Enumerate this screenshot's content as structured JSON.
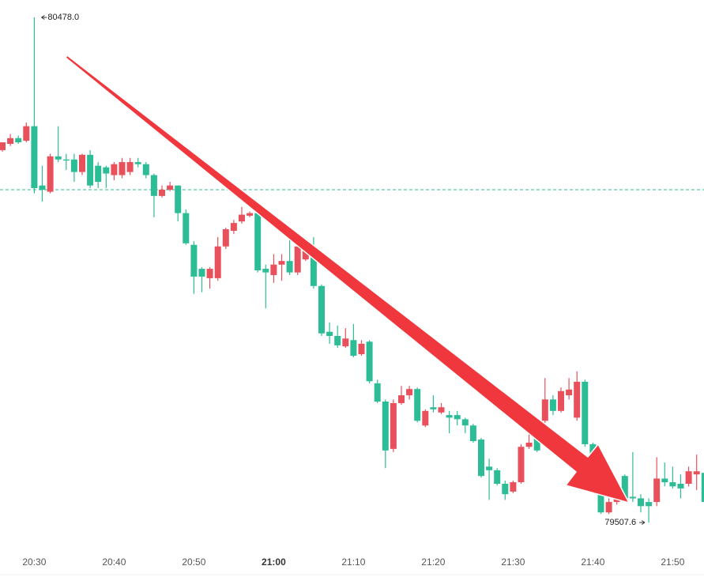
{
  "chart_data": {
    "type": "candlestick",
    "up_color": "#e8505b",
    "down_color": "#2dbd96",
    "price_line": 80147,
    "price_line_color": "#2dbd96",
    "high_label": "80478.0",
    "low_label": "79507.6",
    "categories": [
      null,
      null,
      null,
      null,
      "20:30",
      null,
      null,
      null,
      null,
      null,
      null,
      null,
      null,
      null,
      "20:40",
      null,
      null,
      null,
      null,
      null,
      null,
      null,
      null,
      null,
      "20:50",
      null,
      null,
      null,
      null,
      null,
      null,
      null,
      null,
      null,
      "21:00",
      null,
      null,
      null,
      null,
      null,
      null,
      null,
      null,
      null,
      "21:10",
      null,
      null,
      null,
      null,
      null,
      null,
      null,
      null,
      null,
      "21:20",
      null,
      null,
      null,
      null,
      null,
      null,
      null,
      null,
      null,
      "21:30",
      null,
      null,
      null,
      null,
      null,
      null,
      null,
      null,
      null,
      "21:40",
      null,
      null,
      null,
      null,
      null,
      null,
      null,
      null,
      null,
      "21:50",
      null,
      null,
      null,
      null
    ],
    "open": [
      80223,
      80235,
      80246,
      80241,
      80269,
      80155,
      80143,
      80211,
      80205,
      80205,
      80181,
      80214,
      80193,
      80190,
      80175,
      80175,
      80181,
      80200,
      80196,
      80175,
      80135,
      80147,
      80155,
      80102,
      80041,
      79995,
      79977,
      79977,
      80038,
      80068,
      80086,
      80097,
      80102,
      79995,
      79983,
      80003,
      80010,
      79988,
      80013,
      80033,
      79962,
      79874,
      79866,
      79846,
      79858,
      79831,
      79855,
      79775,
      79740,
      79649,
      79737,
      79752,
      79764,
      79694,
      79729,
      79719,
      79714,
      79714,
      79706,
      79694,
      79667,
      79615,
      79608,
      79582,
      79567,
      79585,
      79653,
      79676,
      79703,
      79744,
      79722,
      79752,
      79709,
      79778,
      79658,
      79615,
      79527,
      79547,
      79597,
      79557,
      79554,
      79547,
      79547,
      79592,
      79585,
      79582,
      79582,
      79600,
      79603
    ],
    "high": [
      80238,
      80254,
      80251,
      80276,
      80478.0,
      80193,
      80216,
      80269,
      80216,
      80216,
      80216,
      80223,
      80200,
      80193,
      80200,
      80208,
      80208,
      80208,
      80200,
      80178,
      80155,
      80162,
      80155,
      80109,
      80048,
      79998,
      79998,
      80056,
      80074,
      80089,
      80114,
      80105,
      80109,
      80003,
      80023,
      80023,
      80056,
      80044,
      80048,
      80056,
      79965,
      79892,
      79886,
      79881,
      79889,
      79858,
      79858,
      79782,
      79744,
      79744,
      79770,
      79770,
      79767,
      79725,
      79752,
      79737,
      79722,
      79722,
      79709,
      79697,
      79670,
      79630,
      79612,
      79588,
      79588,
      79658,
      79691,
      79684,
      79785,
      79752,
      79767,
      79785,
      79798,
      79782,
      79661,
      79618,
      79554,
      79562,
      79600,
      79643,
      79562,
      79554,
      79633,
      79623,
      79615,
      79600,
      79615,
      79638,
      79615
    ],
    "low": [
      80220,
      80231,
      80235,
      80238,
      80140,
      80124,
      80140,
      80200,
      80185,
      80162,
      80175,
      80150,
      80150,
      80150,
      80165,
      80169,
      80175,
      80190,
      80169,
      80094,
      80132,
      80144,
      80086,
      80041,
      79947,
      79950,
      79957,
      79972,
      80033,
      80062,
      80082,
      80094,
      79988,
      79919,
      79968,
      79972,
      79983,
      79983,
      80010,
      79957,
      79866,
      79851,
      79843,
      79843,
      79825,
      79828,
      79775,
      79737,
      79612,
      79643,
      79734,
      79744,
      79700,
      79691,
      79719,
      79716,
      79679,
      79694,
      79679,
      79661,
      79594,
      79551,
      79579,
      79551,
      79564,
      79582,
      79649,
      79643,
      79699,
      79714,
      79719,
      79744,
      79703,
      79653,
      79603,
      79524,
      79524,
      79542,
      79551,
      79547,
      79527,
      79507.6,
      79539,
      79577,
      79573,
      79554,
      79577,
      79570,
      79527
    ],
    "close": [
      80238,
      80246,
      80238,
      80269,
      80150,
      80147,
      80211,
      80205,
      80203,
      80181,
      80214,
      80155,
      80162,
      80178,
      80196,
      80200,
      80200,
      80196,
      80175,
      80135,
      80147,
      80155,
      80102,
      80044,
      79980,
      79980,
      79995,
      80038,
      80071,
      80083,
      80099,
      80102,
      79992,
      79988,
      80003,
      80010,
      79988,
      80038,
      80033,
      79962,
      79871,
      79866,
      79848,
      79861,
      79828,
      79851,
      79779,
      79740,
      79646,
      79737,
      79752,
      79764,
      79703,
      79722,
      79725,
      79729,
      79709,
      79706,
      79694,
      79664,
      79597,
      79608,
      79582,
      79562,
      79585,
      79653,
      79661,
      79646,
      79744,
      79722,
      79760,
      79763,
      79778,
      79658,
      79630,
      79527,
      79547,
      79554,
      79554,
      79554,
      79539,
      79539,
      79592,
      79585,
      79577,
      79573,
      79606,
      79606,
      79547
    ]
  }
}
